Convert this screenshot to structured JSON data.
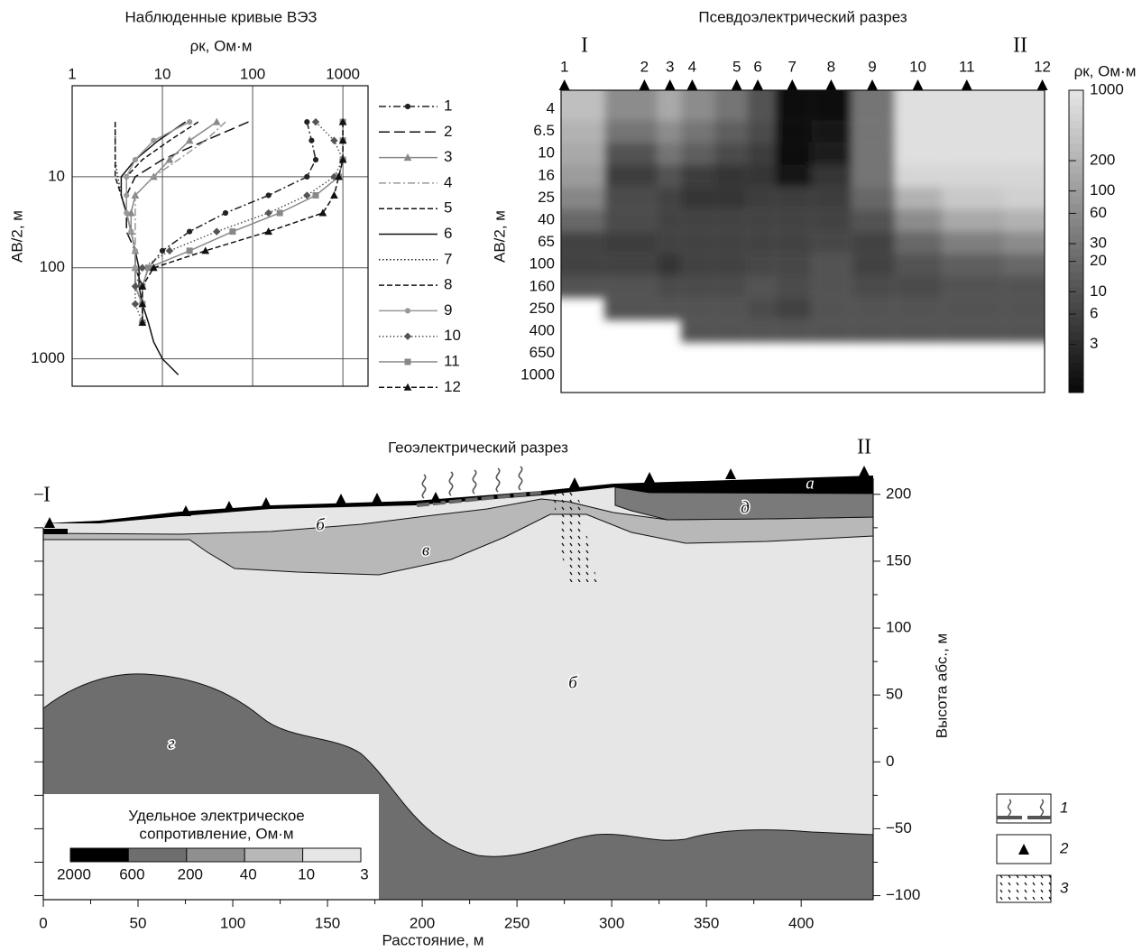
{
  "chart_data": [
    {
      "type": "line",
      "title": "Наблюденные кривые ВЭЗ",
      "xlabel": "ρк, Ом·м",
      "ylabel": "AB/2, м",
      "xlog": true,
      "ylog": true,
      "grid": true,
      "xlim": [
        1,
        1900
      ],
      "ylim": [
        1,
        2000
      ],
      "xticks": [
        1,
        10,
        100,
        1000
      ],
      "yticks": [
        10,
        100,
        1000
      ],
      "y": [
        2.5,
        4,
        6.5,
        10,
        16,
        25,
        40,
        65,
        100,
        160,
        250,
        400,
        650,
        1000,
        1500
      ],
      "series": [
        {
          "name": "1",
          "color": "#222222",
          "linestyle": "dashdot",
          "marker": "circle",
          "values": [
            400,
            450,
            500,
            400,
            150,
            50,
            20,
            10,
            7,
            6,
            6,
            6,
            null,
            null,
            null
          ]
        },
        {
          "name": "2",
          "color": "#111111",
          "linestyle": "longdash",
          "marker": "none",
          "values": [
            90,
            30,
            10,
            5,
            4,
            4,
            4,
            5,
            5,
            5,
            6,
            6,
            null,
            null,
            null
          ]
        },
        {
          "name": "3",
          "color": "#888888",
          "linestyle": "solid",
          "marker": "triangle",
          "values": [
            40,
            20,
            12,
            8,
            5,
            4.5,
            4.5,
            5,
            5,
            6,
            6,
            6,
            null,
            null,
            null
          ]
        },
        {
          "name": "4",
          "color": "#999999",
          "linestyle": "dashdot",
          "marker": "none",
          "values": [
            50,
            30,
            15,
            8,
            5,
            5,
            5,
            5,
            5,
            6,
            6,
            6,
            null,
            null,
            null
          ]
        },
        {
          "name": "5",
          "color": "#111111",
          "linestyle": "dashed",
          "marker": "none",
          "values": [
            25,
            12,
            6,
            4,
            4,
            4,
            4.5,
            5,
            5,
            5,
            6,
            6,
            null,
            null,
            null
          ]
        },
        {
          "name": "6",
          "color": "#111111",
          "linestyle": "solid",
          "marker": "none",
          "values": [
            18,
            9,
            5,
            3.5,
            3.5,
            4,
            4.5,
            5,
            5.5,
            5.5,
            6,
            7,
            8,
            10,
            15
          ]
        },
        {
          "name": "7",
          "color": "#222222",
          "linestyle": "dotted",
          "marker": "none",
          "values": [
            3,
            3,
            3,
            3.2,
            3.5,
            4,
            4.5,
            5,
            5,
            5,
            6,
            6,
            null,
            null,
            null
          ]
        },
        {
          "name": "8",
          "color": "#111111",
          "linestyle": "dashed",
          "marker": "none",
          "values": [
            3,
            3,
            3,
            3,
            3.5,
            4,
            4.5,
            5,
            5,
            6,
            6,
            6,
            null,
            null,
            null
          ]
        },
        {
          "name": "9",
          "color": "#999999",
          "linestyle": "solid",
          "marker": "circle",
          "values": [
            20,
            8,
            5,
            4,
            4,
            4,
            4.5,
            5,
            5,
            5,
            6,
            6,
            null,
            null,
            null
          ]
        },
        {
          "name": "10",
          "color": "#555555",
          "linestyle": "dotted",
          "marker": "diamond",
          "values": [
            500,
            800,
            1000,
            800,
            400,
            150,
            40,
            12,
            6,
            5,
            5,
            6,
            null,
            null,
            null
          ]
        },
        {
          "name": "11",
          "color": "#888888",
          "linestyle": "solid",
          "marker": "square",
          "values": [
            1000,
            1000,
            1000,
            900,
            500,
            200,
            60,
            20,
            7,
            6,
            6,
            6,
            null,
            null,
            null
          ]
        },
        {
          "name": "12",
          "color": "#111111",
          "linestyle": "dashed",
          "marker": "triangle",
          "values": [
            1000,
            1000,
            1000,
            900,
            800,
            600,
            150,
            30,
            8,
            6,
            6,
            6,
            null,
            null,
            null
          ]
        }
      ]
    },
    {
      "type": "heatmap",
      "title": "Псевдоэлектрический разрез",
      "ylabel": "AB/2, м",
      "markers": [
        "I",
        "II"
      ],
      "stations": [
        "1",
        "2",
        "3",
        "4",
        "5",
        "6",
        "7",
        "8",
        "9",
        "10",
        "11",
        "12"
      ],
      "x": [
        3,
        75,
        98,
        118,
        158,
        177,
        208,
        243,
        280,
        321,
        365,
        433
      ],
      "xlim": [
        0,
        435
      ],
      "ab2": [
        4,
        6.5,
        10,
        16,
        25,
        40,
        65,
        100,
        160,
        250,
        400,
        650,
        1000
      ],
      "values": [
        [
          300,
          60,
          150,
          60,
          30,
          10,
          1,
          1,
          30,
          800,
          800,
          800
        ],
        [
          200,
          30,
          60,
          30,
          15,
          8,
          1,
          1.5,
          30,
          800,
          800,
          800
        ],
        [
          150,
          10,
          30,
          15,
          8,
          5,
          1,
          2,
          30,
          800,
          800,
          800
        ],
        [
          100,
          5,
          10,
          5,
          4,
          4,
          1.5,
          4,
          30,
          600,
          600,
          600
        ],
        [
          50,
          8,
          6,
          4,
          4,
          5,
          5,
          5,
          20,
          200,
          400,
          500
        ],
        [
          20,
          8,
          6,
          6,
          6,
          6,
          6,
          6,
          10,
          60,
          150,
          200
        ],
        [
          6,
          5,
          6,
          6,
          6,
          6,
          6,
          7,
          6,
          20,
          40,
          60
        ],
        [
          6,
          6,
          4,
          6,
          6,
          7,
          7,
          10,
          6,
          10,
          15,
          20
        ],
        [
          10,
          10,
          8,
          8,
          8,
          10,
          8,
          10,
          8,
          8,
          10,
          10
        ],
        [
          null,
          10,
          10,
          10,
          10,
          8,
          6,
          10,
          10,
          10,
          10,
          10
        ],
        [
          null,
          null,
          null,
          10,
          10,
          10,
          10,
          10,
          10,
          10,
          10,
          10
        ],
        [
          null,
          null,
          null,
          null,
          null,
          null,
          null,
          null,
          null,
          null,
          null,
          null
        ],
        [
          null,
          null,
          null,
          null,
          null,
          null,
          null,
          null,
          null,
          null,
          null,
          null
        ]
      ],
      "colorbar": {
        "title": "ρк, Ом·м",
        "lim": [
          1,
          1000
        ],
        "ticks": [
          1000,
          200,
          100,
          60,
          30,
          20,
          10,
          6,
          3
        ]
      }
    },
    {
      "type": "section",
      "title": "Геоэлектрический разрез",
      "xlabel": "Расстояние, м",
      "ylabel": "Высота абс., м",
      "xlim": [
        0,
        438
      ],
      "ylim": [
        -103,
        212
      ],
      "xticks": [
        0,
        50,
        100,
        150,
        200,
        250,
        300,
        350,
        400
      ],
      "yticks": [
        200,
        150,
        100,
        50,
        0,
        {
          "value": -50,
          "label": "−50"
        },
        {
          "value": -100,
          "label": "−100"
        }
      ],
      "markers": [
        "I",
        "II"
      ],
      "layer_labels": [
        "а",
        "б",
        "в",
        "б",
        "г",
        "д"
      ],
      "legend": {
        "title": [
          "Удельное электрическое",
          "сопротивление, Ом·м"
        ],
        "bounds": [
          2000,
          600,
          200,
          40,
          10,
          3
        ],
        "colors": [
          "#000000",
          "#6e6e6e",
          "#8f8f8f",
          "#b8b8b8",
          "#e6e6e6"
        ]
      },
      "symbols": [
        "1",
        "2",
        "3"
      ]
    }
  ]
}
